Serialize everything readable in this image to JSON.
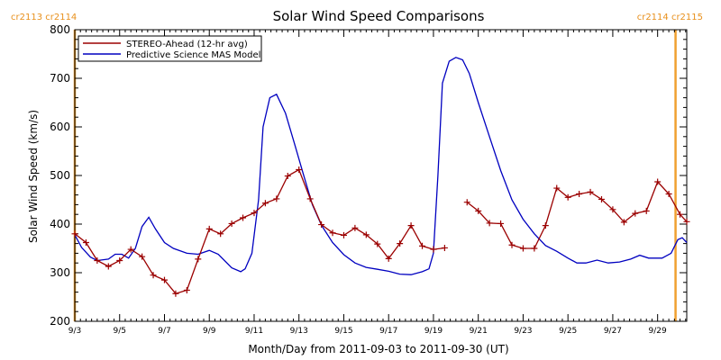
{
  "chart_data": {
    "type": "line",
    "title": "Solar Wind Speed Comparisons",
    "xlabel": "Month/Day from 2011-09-03 to 2011-09-30 (UT)",
    "ylabel": "Solar Wind Speed (km/s)",
    "xlim": [
      0,
      27.3
    ],
    "ylim": [
      200,
      800
    ],
    "yticks": [
      200,
      300,
      400,
      500,
      600,
      700,
      800
    ],
    "xticks": [
      {
        "x": 0,
        "label": "9/3"
      },
      {
        "x": 2,
        "label": "9/5"
      },
      {
        "x": 4,
        "label": "9/7"
      },
      {
        "x": 6,
        "label": "9/9"
      },
      {
        "x": 8,
        "label": "9/11"
      },
      {
        "x": 10,
        "label": "9/13"
      },
      {
        "x": 12,
        "label": "9/15"
      },
      {
        "x": 14,
        "label": "9/17"
      },
      {
        "x": 16,
        "label": "9/19"
      },
      {
        "x": 18,
        "label": "9/21"
      },
      {
        "x": 20,
        "label": "9/23"
      },
      {
        "x": 22,
        "label": "9/25"
      },
      {
        "x": 24,
        "label": "9/27"
      },
      {
        "x": 26,
        "label": "9/29"
      }
    ],
    "legend_position": "top-left",
    "carrington_markers": [
      {
        "x": 0,
        "label": "cr2113 cr2114",
        "side": "left",
        "color": "#f0a030"
      },
      {
        "x": 26.8,
        "label": "cr2114 cr2115",
        "side": "right",
        "color": "#f0a030"
      }
    ],
    "series": [
      {
        "name": "STEREO-Ahead (12-hr avg)",
        "color": "#9b0000",
        "marker": "plus",
        "segments": [
          [
            [
              0.0,
              380
            ],
            [
              0.5,
              362
            ],
            [
              1.0,
              325
            ],
            [
              1.5,
              313
            ],
            [
              2.0,
              325
            ],
            [
              2.5,
              348
            ],
            [
              3.0,
              333
            ],
            [
              3.5,
              295
            ],
            [
              4.0,
              285
            ],
            [
              4.5,
              257
            ],
            [
              5.0,
              264
            ],
            [
              5.5,
              328
            ],
            [
              6.0,
              390
            ],
            [
              6.5,
              380
            ],
            [
              7.0,
              401
            ],
            [
              7.5,
              413
            ],
            [
              8.0,
              423
            ],
            [
              8.5,
              443
            ],
            [
              9.0,
              452
            ],
            [
              9.5,
              499
            ],
            [
              10.0,
              512
            ],
            [
              10.5,
              452
            ],
            [
              11.0,
              399
            ],
            [
              11.5,
              382
            ],
            [
              12.0,
              377
            ],
            [
              12.5,
              392
            ],
            [
              13.0,
              378
            ],
            [
              13.5,
              359
            ],
            [
              14.0,
              329
            ],
            [
              14.5,
              360
            ],
            [
              15.0,
              397
            ],
            [
              15.5,
              355
            ],
            [
              16.0,
              348
            ],
            [
              16.5,
              351
            ]
          ],
          [
            [
              17.5,
              445
            ],
            [
              18.0,
              427
            ],
            [
              18.5,
              402
            ],
            [
              19.0,
              401
            ],
            [
              19.5,
              357
            ],
            [
              20.0,
              350
            ],
            [
              20.5,
              350
            ],
            [
              21.0,
              397
            ],
            [
              21.5,
              474
            ],
            [
              22.0,
              455
            ],
            [
              22.5,
              462
            ],
            [
              23.0,
              466
            ],
            [
              23.5,
              451
            ],
            [
              24.0,
              430
            ],
            [
              24.5,
              404
            ],
            [
              25.0,
              422
            ],
            [
              25.5,
              427
            ],
            [
              26.0,
              487
            ],
            [
              26.5,
              462
            ],
            [
              27.0,
              420
            ],
            [
              27.3,
              405
            ]
          ]
        ]
      },
      {
        "name": "Predictive Science MAS Model",
        "color": "#0000c0",
        "marker": "none",
        "segments": [
          [
            [
              0.0,
              378
            ],
            [
              0.3,
              352
            ],
            [
              0.7,
              332
            ],
            [
              1.0,
              325
            ],
            [
              1.5,
              328
            ],
            [
              1.8,
              338
            ],
            [
              2.1,
              338
            ],
            [
              2.4,
              330
            ],
            [
              2.7,
              350
            ],
            [
              3.0,
              395
            ],
            [
              3.3,
              414
            ],
            [
              3.6,
              390
            ],
            [
              4.0,
              362
            ],
            [
              4.4,
              350
            ],
            [
              5.0,
              340
            ],
            [
              5.5,
              338
            ],
            [
              6.0,
              346
            ],
            [
              6.4,
              338
            ],
            [
              7.0,
              310
            ],
            [
              7.4,
              302
            ],
            [
              7.6,
              308
            ],
            [
              7.9,
              340
            ],
            [
              8.2,
              450
            ],
            [
              8.4,
              600
            ],
            [
              8.7,
              660
            ],
            [
              9.0,
              667
            ],
            [
              9.4,
              628
            ],
            [
              9.8,
              566
            ],
            [
              10.2,
              502
            ],
            [
              10.6,
              440
            ],
            [
              11.0,
              398
            ],
            [
              11.5,
              362
            ],
            [
              12.0,
              337
            ],
            [
              12.5,
              320
            ],
            [
              13.0,
              311
            ],
            [
              13.5,
              307
            ],
            [
              14.0,
              303
            ],
            [
              14.5,
              297
            ],
            [
              15.0,
              296
            ],
            [
              15.5,
              302
            ],
            [
              15.8,
              308
            ],
            [
              16.0,
              340
            ],
            [
              16.2,
              500
            ],
            [
              16.4,
              690
            ],
            [
              16.7,
              735
            ],
            [
              17.0,
              743
            ],
            [
              17.3,
              738
            ],
            [
              17.6,
              710
            ],
            [
              18.0,
              650
            ],
            [
              18.5,
              580
            ],
            [
              19.0,
              510
            ],
            [
              19.5,
              450
            ],
            [
              20.0,
              410
            ],
            [
              20.5,
              380
            ],
            [
              21.0,
              356
            ],
            [
              21.5,
              344
            ],
            [
              22.0,
              330
            ],
            [
              22.4,
              320
            ],
            [
              22.8,
              320
            ],
            [
              23.3,
              326
            ],
            [
              23.8,
              320
            ],
            [
              24.3,
              322
            ],
            [
              24.8,
              328
            ],
            [
              25.2,
              336
            ],
            [
              25.6,
              330
            ],
            [
              26.2,
              330
            ],
            [
              26.6,
              340
            ],
            [
              26.9,
              368
            ],
            [
              27.1,
              372
            ],
            [
              27.3,
              362
            ]
          ]
        ]
      }
    ]
  }
}
